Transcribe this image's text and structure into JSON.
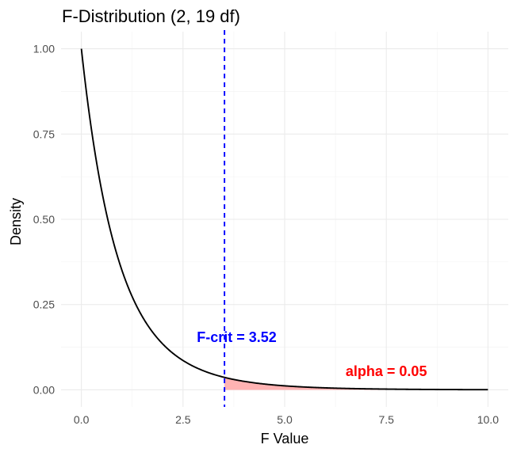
{
  "chart_data": {
    "type": "line",
    "title": "F-Distribution (2, 19 df)",
    "xlabel": "F Value",
    "ylabel": "Density",
    "xlim": [
      -0.5,
      10.5
    ],
    "ylim": [
      -0.05,
      1.05
    ],
    "x_ticks": [
      0,
      2.5,
      5,
      7.5,
      10
    ],
    "x_tick_labels": [
      "0.0",
      "2.5",
      "5.0",
      "7.5",
      "10.0"
    ],
    "y_ticks": [
      0,
      0.25,
      0.5,
      0.75,
      1
    ],
    "y_tick_labels": [
      "0.00",
      "0.25",
      "0.50",
      "0.75",
      "1.00"
    ],
    "grid": true,
    "df1": 2,
    "df2": 19,
    "series": [
      {
        "x_range": [
          0,
          10
        ],
        "formula": "F(2,19) density: (1 + 2x/19)^(-10.5)",
        "color": "#000000"
      }
    ],
    "critical_value": {
      "x": 3.52,
      "label": "F-crit = 3.52",
      "color": "#0000ff",
      "line_style": "dashed"
    },
    "shaded_region": {
      "x_from": 3.52,
      "x_to": 10,
      "fill": "#ffb3b3"
    },
    "alpha_annotation": {
      "label": "alpha = 0.05",
      "x": 7.5,
      "y": 0.04,
      "color": "#ff0000"
    }
  }
}
